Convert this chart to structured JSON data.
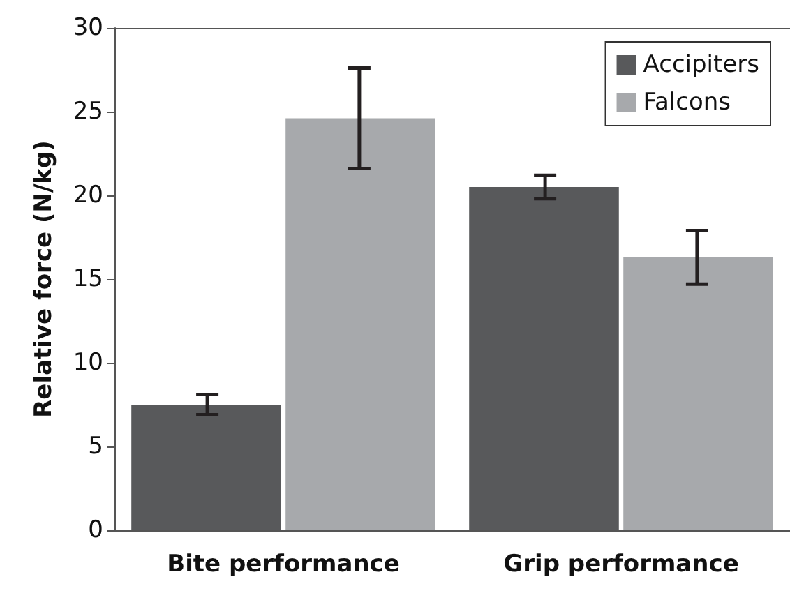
{
  "chart_data": {
    "type": "bar",
    "ylabel": "Relative force (N/kg)",
    "categories": [
      "Bite performance",
      "Grip performance"
    ],
    "series": [
      {
        "name": "Accipiters",
        "color": "#58595b",
        "values": [
          7.5,
          20.5
        ],
        "errors": [
          0.6,
          0.7
        ]
      },
      {
        "name": "Falcons",
        "color": "#a7a9ac",
        "values": [
          24.6,
          16.3
        ],
        "errors": [
          3,
          1.6
        ]
      }
    ],
    "ylim": [
      0,
      30
    ],
    "yticks": [
      0,
      5,
      10,
      15,
      20,
      25,
      30
    ],
    "grid": false,
    "legend": "top right"
  }
}
